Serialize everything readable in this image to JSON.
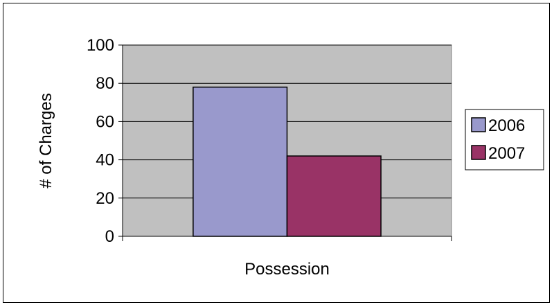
{
  "chart_data": {
    "type": "bar",
    "categories": [
      "Possession"
    ],
    "series": [
      {
        "name": "2006",
        "values": [
          78
        ],
        "color": "#9999cc"
      },
      {
        "name": "2007",
        "values": [
          42
        ],
        "color": "#993366"
      }
    ],
    "title": "",
    "xlabel": "Possession",
    "ylabel": "# of Charges",
    "ylim": [
      0,
      100
    ],
    "yticks": [
      0,
      20,
      40,
      60,
      80,
      100
    ],
    "grid": true,
    "legend_position": "right",
    "plot_background": "#c0c0c0"
  }
}
